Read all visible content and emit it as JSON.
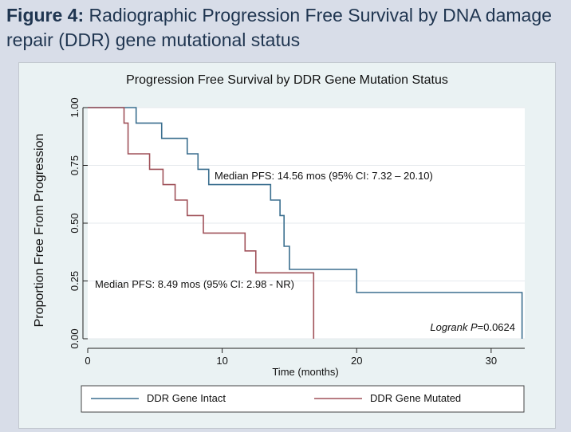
{
  "figure": {
    "label": "Figure 4:",
    "caption": " Radiographic Progression Free Survival by DNA damage repair (DDR) gene mutational status"
  },
  "chart_data": {
    "type": "line",
    "step": true,
    "title": "Progression Free Survival by DDR Gene Mutation Status",
    "xlabel": "Time (months)",
    "ylabel": "Proportion Free From Progression",
    "xlim": [
      0,
      32.5
    ],
    "ylim": [
      0,
      1
    ],
    "x_ticks": [
      0,
      10,
      20,
      30
    ],
    "x_tick_labels": [
      "0",
      "10",
      "20",
      "30"
    ],
    "y_ticks": [
      0,
      0.25,
      0.5,
      0.75,
      1
    ],
    "y_tick_labels": [
      "0.00",
      "0.25",
      "0.50",
      "0.75",
      "1.00"
    ],
    "grid": true,
    "legend_position": "bottom",
    "series": [
      {
        "name": "DDR Gene Intact",
        "color": "#3b6f8f",
        "x": [
          0,
          3.6,
          5.5,
          7.4,
          8.2,
          9.0,
          13.6,
          14.3,
          14.6,
          15.0,
          20.0,
          32.3
        ],
        "y": [
          1.0,
          0.933,
          0.867,
          0.8,
          0.733,
          0.667,
          0.6,
          0.533,
          0.4,
          0.3,
          0.2,
          0.0
        ]
      },
      {
        "name": "DDR Gene Mutated",
        "color": "#a0525a",
        "x": [
          0,
          2.7,
          3.0,
          4.6,
          5.6,
          6.5,
          7.4,
          8.6,
          11.7,
          12.5,
          16.8
        ],
        "y": [
          1.0,
          0.933,
          0.8,
          0.733,
          0.667,
          0.6,
          0.533,
          0.457,
          0.38,
          0.285,
          0.0
        ]
      }
    ],
    "annotations": [
      {
        "text": "Median PFS: 14.56 mos (95% CI: 7.32 – 20.10)"
      },
      {
        "text": "Median PFS: 8.49 mos (95% CI: 2.98 - NR)"
      },
      {
        "italic": "Logrank P",
        "rest": "=0.0624"
      }
    ]
  }
}
